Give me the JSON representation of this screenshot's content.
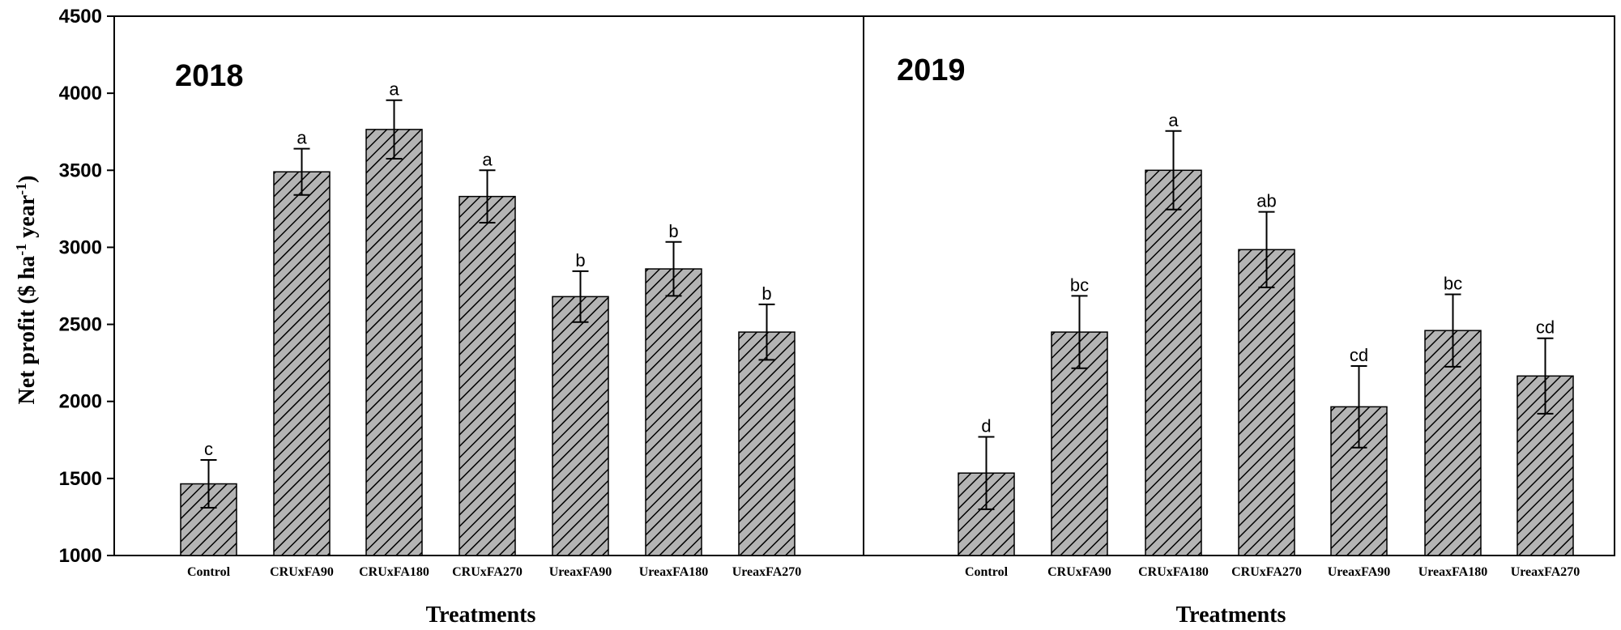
{
  "chart_data": {
    "type": "bar",
    "ylabel_main": "Net profit ($ ha",
    "ylabel_mid": " year",
    "ylabel_close": ")",
    "ylabel_sup": "-1",
    "xlabel": "Treatments",
    "ylim": [
      1000,
      4500
    ],
    "yticks": [
      1000,
      1500,
      2000,
      2500,
      3000,
      3500,
      4000,
      4500
    ],
    "categories": [
      "Control",
      "CRUxFA90",
      "CRUxFA180",
      "CRUxFA270",
      "UreaxFA90",
      "UreaxFA180",
      "UreaxFA270"
    ],
    "panels": [
      {
        "title": "2018",
        "values": [
          1465,
          3490,
          3765,
          3330,
          2680,
          2860,
          2450
        ],
        "errors": [
          155,
          150,
          190,
          170,
          165,
          175,
          180
        ],
        "letters": [
          "c",
          "a",
          "a",
          "a",
          "b",
          "b",
          "b"
        ]
      },
      {
        "title": "2019",
        "values": [
          1535,
          2450,
          3500,
          2985,
          1965,
          2460,
          2165
        ],
        "errors": [
          235,
          235,
          255,
          245,
          265,
          235,
          245
        ],
        "letters": [
          "d",
          "bc",
          "a",
          "ab",
          "cd",
          "bc",
          "cd"
        ]
      }
    ]
  }
}
